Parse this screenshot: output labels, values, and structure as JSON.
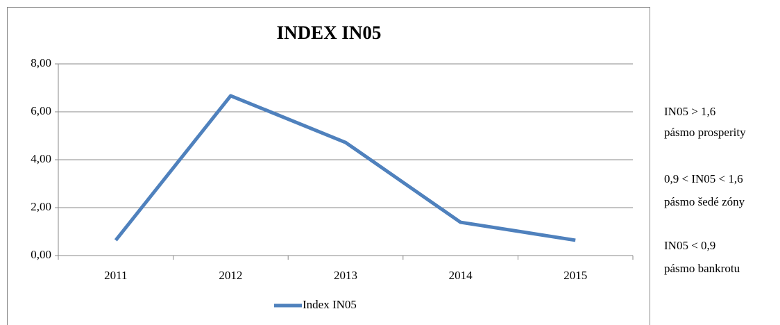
{
  "chart_data": {
    "type": "line",
    "title": "INDEX IN05",
    "categories": [
      "2011",
      "2012",
      "2013",
      "2014",
      "2015"
    ],
    "series": [
      {
        "name": "Index IN05",
        "color": "#4f81bd",
        "values": [
          0.64,
          6.67,
          4.72,
          1.39,
          0.64
        ]
      }
    ],
    "ylim": [
      0,
      8
    ],
    "yticks": [
      {
        "value": 0,
        "label": "0,00"
      },
      {
        "value": 2,
        "label": "2,00"
      },
      {
        "value": 4,
        "label": "4,00"
      },
      {
        "value": 6,
        "label": "6,00"
      },
      {
        "value": 8,
        "label": "8,00"
      }
    ],
    "grid": true,
    "legend": "bottom",
    "annotations": [
      "IN05 > 1,6",
      "pásmo prosperity",
      "0,9 < IN05 < 1,6",
      "pásmo šedé zóny",
      "IN05 < 0,9",
      "pásmo bankrotu"
    ]
  }
}
